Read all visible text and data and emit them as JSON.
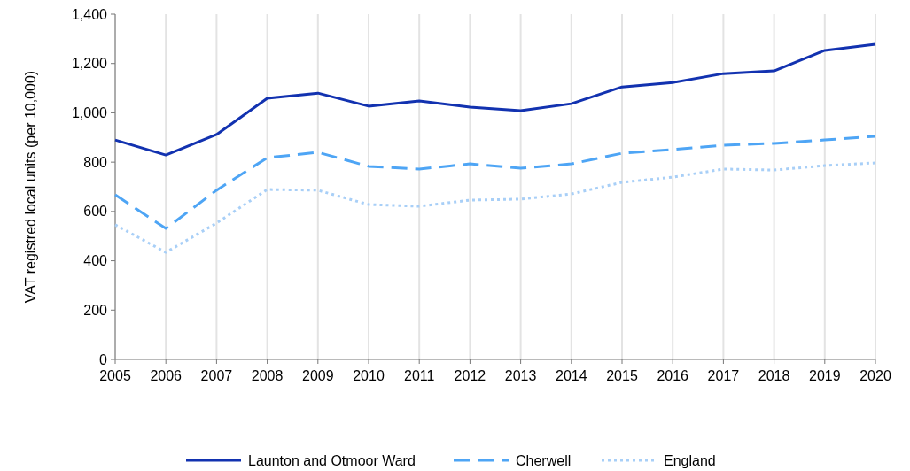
{
  "chart_data": {
    "type": "line",
    "ylabel": "VAT registred local units (per 10,000)",
    "x": [
      2005,
      2006,
      2007,
      2008,
      2009,
      2010,
      2011,
      2012,
      2013,
      2014,
      2015,
      2016,
      2017,
      2018,
      2019,
      2020
    ],
    "xlim": [
      2005,
      2020
    ],
    "xticks": [
      2005,
      2006,
      2007,
      2008,
      2009,
      2010,
      2011,
      2012,
      2013,
      2014,
      2015,
      2016,
      2017,
      2018,
      2019,
      2020
    ],
    "ylim": [
      0,
      1400
    ],
    "yticks": [
      0,
      {
        "value": 200,
        "label": "200"
      },
      {
        "value": 400,
        "label": "400"
      },
      {
        "value": 600,
        "label": "600"
      },
      {
        "value": 800,
        "label": "800"
      },
      {
        "value": 1000,
        "label": "1,000"
      },
      {
        "value": 1200,
        "label": "1,200"
      },
      {
        "value": 1400,
        "label": "1,400"
      }
    ],
    "grid": "x",
    "legend": "bottom",
    "series": [
      {
        "name": "Launton and Otmoor Ward",
        "color": "#1232b0",
        "line_style": "solid",
        "values": [
          890,
          829,
          912,
          1059,
          1080,
          1027,
          1048,
          1023,
          1009,
          1037,
          1105,
          1123,
          1159,
          1170,
          1253,
          1278
        ]
      },
      {
        "name": "Cherwell",
        "color": "#4ea5f5",
        "line_style": "dashed",
        "values": [
          668,
          531,
          686,
          818,
          840,
          783,
          772,
          793,
          775,
          793,
          836,
          851,
          869,
          876,
          890,
          905
        ]
      },
      {
        "name": "England",
        "color": "#a8cff7",
        "line_style": "dotted",
        "values": [
          546,
          434,
          553,
          689,
          686,
          628,
          621,
          646,
          650,
          671,
          718,
          739,
          772,
          768,
          786,
          797
        ]
      }
    ]
  }
}
